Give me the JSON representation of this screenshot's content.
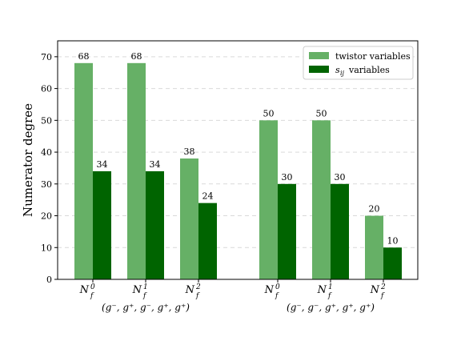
{
  "chart_data": {
    "type": "bar",
    "ylabel": "Numerator degree",
    "xlabel": "",
    "ylim": [
      0,
      75
    ],
    "yticks": [
      0,
      10,
      20,
      30,
      40,
      50,
      60,
      70
    ],
    "grid": "horizontal dashed",
    "legend_position": "top-right",
    "categories": [
      {
        "base": "N",
        "sub": "f",
        "sup": "0"
      },
      {
        "base": "N",
        "sub": "f",
        "sup": "1"
      },
      {
        "base": "N",
        "sub": "f",
        "sup": "2"
      },
      {
        "base": "N",
        "sub": "f",
        "sup": "0"
      },
      {
        "base": "N",
        "sub": "f",
        "sup": "1"
      },
      {
        "base": "N",
        "sub": "f",
        "sup": "2"
      }
    ],
    "groups": [
      {
        "label": "(g⁻, g⁺, g⁻, g⁺, g⁺)",
        "categories": [
          0,
          1,
          2
        ]
      },
      {
        "label": "(g⁻, g⁻, g⁺, g⁺, g⁺)",
        "categories": [
          3,
          4,
          5
        ]
      }
    ],
    "series": [
      {
        "name": "twistor variables",
        "color": "#66b066",
        "values": [
          68,
          68,
          38,
          50,
          50,
          20
        ]
      },
      {
        "name": "s_ij variables",
        "legend_base": "s",
        "legend_sub": "ij",
        "legend_suffix": "variables",
        "color": "#006400",
        "values": [
          34,
          34,
          24,
          30,
          30,
          10
        ]
      }
    ]
  }
}
